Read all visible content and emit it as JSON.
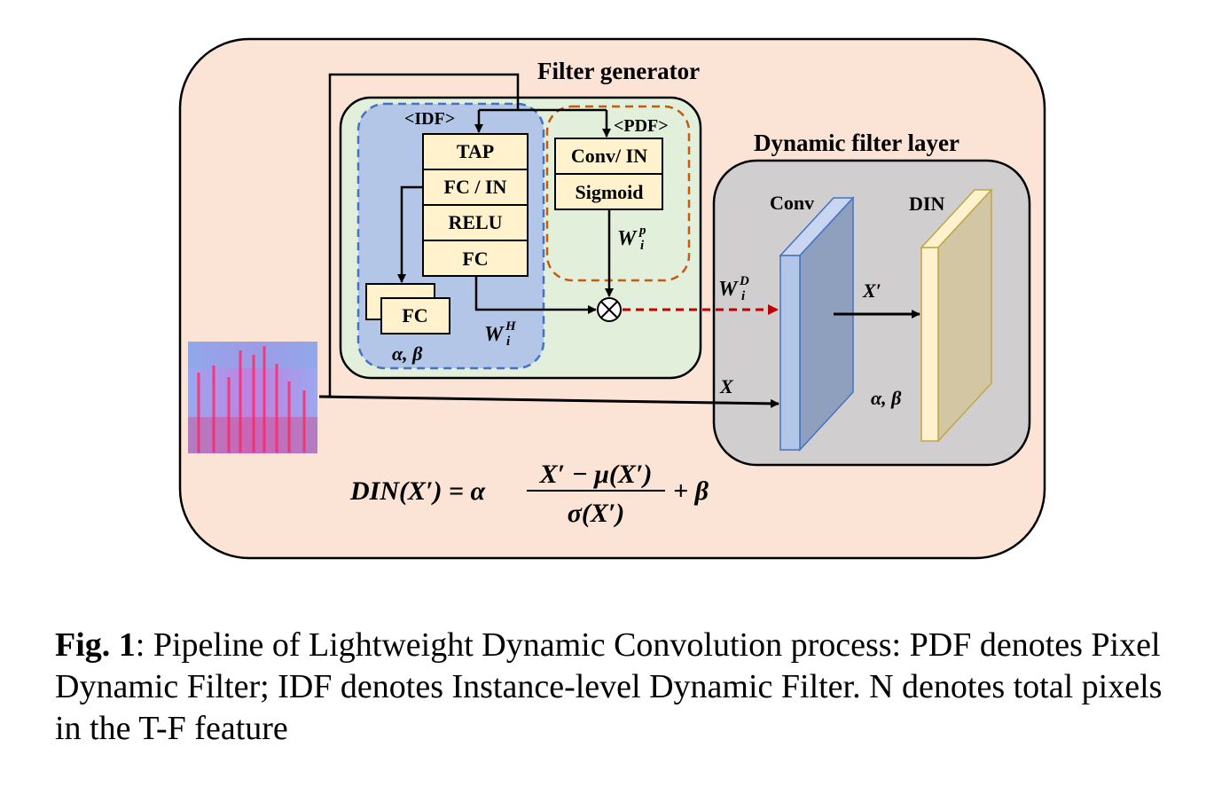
{
  "diagram": {
    "filter_generator_title": "Filter generator",
    "idf_tag": "<IDF>",
    "pdf_tag": "<PDF>",
    "idf_blocks": [
      "TAP",
      "FC / IN",
      "RELU",
      "FC"
    ],
    "fc_side_block": "FC",
    "alpha_beta_idf": "α, β",
    "pdf_blocks": [
      "Conv/ IN",
      "Sigmoid"
    ],
    "w_p": {
      "base": "W",
      "sup": "p",
      "sub": "i"
    },
    "w_h": {
      "base": "W",
      "sup": "H",
      "sub": "i"
    },
    "w_d": {
      "base": "W",
      "sup": "D",
      "sub": "i"
    },
    "multiply_symbol": "⊗",
    "dynamic_filter_title": "Dynamic filter layer",
    "conv_label": "Conv",
    "din_label": "DIN",
    "x_prime": "X′",
    "x_label": "X",
    "alpha_beta_din": "α, β",
    "formula": {
      "lhs": "DIN(X′) = α",
      "numerator": "X′ − μ(X′)",
      "denominator": "σ(X′)",
      "rhs": "+ β"
    },
    "colors": {
      "outer_bg": "#fbe3d6",
      "generator_bg": "#e2efda",
      "idf_bg": "#b4c6e7",
      "idf_border": "#4472c4",
      "pdf_border": "#c55a11",
      "block_bg": "#fff2cc",
      "dynamic_bg": "#d0cece",
      "conv_face": "#8faadc",
      "din_face": "#d6c7a1",
      "dashed_arrow": "#c00000"
    }
  },
  "caption": {
    "label": "Fig. 1",
    "text": ": Pipeline of Lightweight Dynamic Convolution process: PDF denotes Pixel Dynamic Filter; IDF denotes Instance-level Dynamic Filter. N denotes total pixels in the T-F feature"
  }
}
